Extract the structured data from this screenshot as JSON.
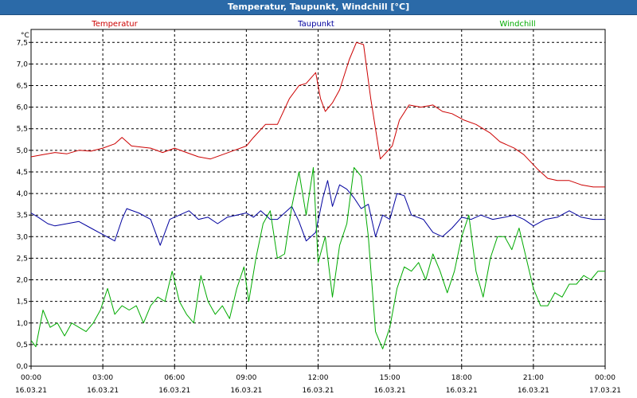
{
  "window": {
    "title": "Temperatur, Taupunkt, Windchill [°C]"
  },
  "chart_data": {
    "type": "line",
    "title": "Temperatur, Taupunkt, Windchill [°C]",
    "unit_label": "°C",
    "ylim": [
      0.0,
      7.8
    ],
    "y_ticks": [
      "0,0",
      "0,5",
      "1,0",
      "1,5",
      "2,0",
      "2,5",
      "3,0",
      "3,5",
      "4,0",
      "4,5",
      "5,0",
      "5,5",
      "6,0",
      "6,5",
      "7,0",
      "7,5"
    ],
    "xlim_hours": [
      0,
      24
    ],
    "x_ticks": [
      {
        "time": "00:00",
        "date": "16.03.21"
      },
      {
        "time": "03:00",
        "date": "16.03.21"
      },
      {
        "time": "06:00",
        "date": "16.03.21"
      },
      {
        "time": "09:00",
        "date": "16.03.21"
      },
      {
        "time": "12:00",
        "date": "16.03.21"
      },
      {
        "time": "15:00",
        "date": "16.03.21"
      },
      {
        "time": "18:00",
        "date": "16.03.21"
      },
      {
        "time": "21:00",
        "date": "16.03.21"
      },
      {
        "time": "00:00",
        "date": "17.03.21"
      }
    ],
    "grid": true,
    "series": [
      {
        "name": "Temperatur",
        "color": "#cc0000",
        "points": [
          [
            0,
            4.85
          ],
          [
            0.5,
            4.9
          ],
          [
            1,
            4.95
          ],
          [
            1.5,
            4.92
          ],
          [
            2,
            5.0
          ],
          [
            2.5,
            4.98
          ],
          [
            3,
            5.05
          ],
          [
            3.5,
            5.15
          ],
          [
            3.8,
            5.3
          ],
          [
            4.2,
            5.1
          ],
          [
            5,
            5.05
          ],
          [
            5.5,
            4.95
          ],
          [
            6,
            5.05
          ],
          [
            6.5,
            4.95
          ],
          [
            7,
            4.85
          ],
          [
            7.5,
            4.8
          ],
          [
            8,
            4.9
          ],
          [
            8.5,
            5.0
          ],
          [
            9,
            5.1
          ],
          [
            9.3,
            5.3
          ],
          [
            9.8,
            5.6
          ],
          [
            10.3,
            5.6
          ],
          [
            10.8,
            6.2
          ],
          [
            11.2,
            6.5
          ],
          [
            11.5,
            6.55
          ],
          [
            11.9,
            6.8
          ],
          [
            12.1,
            6.2
          ],
          [
            12.3,
            5.9
          ],
          [
            12.6,
            6.1
          ],
          [
            12.9,
            6.4
          ],
          [
            13.3,
            7.1
          ],
          [
            13.6,
            7.5
          ],
          [
            13.9,
            7.45
          ],
          [
            14.2,
            6.2
          ],
          [
            14.6,
            4.8
          ],
          [
            15.1,
            5.1
          ],
          [
            15.4,
            5.7
          ],
          [
            15.8,
            6.05
          ],
          [
            16.3,
            6.0
          ],
          [
            16.8,
            6.05
          ],
          [
            17.2,
            5.9
          ],
          [
            17.6,
            5.85
          ],
          [
            18.1,
            5.7
          ],
          [
            18.6,
            5.6
          ],
          [
            19.2,
            5.4
          ],
          [
            19.6,
            5.2
          ],
          [
            20.2,
            5.05
          ],
          [
            20.6,
            4.9
          ],
          [
            21.2,
            4.55
          ],
          [
            21.6,
            4.35
          ],
          [
            22,
            4.3
          ],
          [
            22.5,
            4.3
          ],
          [
            23,
            4.2
          ],
          [
            23.5,
            4.15
          ],
          [
            24,
            4.15
          ]
        ]
      },
      {
        "name": "Taupunkt",
        "color": "#00009e",
        "points": [
          [
            0,
            3.55
          ],
          [
            0.3,
            3.45
          ],
          [
            0.7,
            3.3
          ],
          [
            1,
            3.25
          ],
          [
            1.5,
            3.3
          ],
          [
            2,
            3.35
          ],
          [
            2.5,
            3.2
          ],
          [
            3,
            3.05
          ],
          [
            3.5,
            2.9
          ],
          [
            3.8,
            3.4
          ],
          [
            4,
            3.65
          ],
          [
            4.5,
            3.55
          ],
          [
            5,
            3.4
          ],
          [
            5.4,
            2.8
          ],
          [
            5.8,
            3.4
          ],
          [
            6.2,
            3.5
          ],
          [
            6.6,
            3.6
          ],
          [
            7,
            3.4
          ],
          [
            7.4,
            3.45
          ],
          [
            7.8,
            3.3
          ],
          [
            8.2,
            3.45
          ],
          [
            8.6,
            3.5
          ],
          [
            9,
            3.55
          ],
          [
            9.3,
            3.45
          ],
          [
            9.6,
            3.6
          ],
          [
            10,
            3.4
          ],
          [
            10.3,
            3.4
          ],
          [
            10.6,
            3.55
          ],
          [
            10.9,
            3.7
          ],
          [
            11.2,
            3.35
          ],
          [
            11.5,
            2.9
          ],
          [
            11.9,
            3.1
          ],
          [
            12.2,
            3.9
          ],
          [
            12.4,
            4.3
          ],
          [
            12.6,
            3.7
          ],
          [
            12.9,
            4.2
          ],
          [
            13.2,
            4.1
          ],
          [
            13.5,
            3.9
          ],
          [
            13.8,
            3.65
          ],
          [
            14.1,
            3.75
          ],
          [
            14.4,
            3.0
          ],
          [
            14.7,
            3.5
          ],
          [
            15,
            3.4
          ],
          [
            15.3,
            4.0
          ],
          [
            15.6,
            3.95
          ],
          [
            15.9,
            3.5
          ],
          [
            16.4,
            3.4
          ],
          [
            16.8,
            3.1
          ],
          [
            17.2,
            3.0
          ],
          [
            17.6,
            3.2
          ],
          [
            18,
            3.45
          ],
          [
            18.4,
            3.4
          ],
          [
            18.8,
            3.5
          ],
          [
            19.3,
            3.4
          ],
          [
            19.8,
            3.45
          ],
          [
            20.2,
            3.5
          ],
          [
            20.6,
            3.4
          ],
          [
            21,
            3.25
          ],
          [
            21.5,
            3.4
          ],
          [
            22,
            3.45
          ],
          [
            22.5,
            3.6
          ],
          [
            23,
            3.45
          ],
          [
            23.5,
            3.4
          ],
          [
            24,
            3.4
          ]
        ]
      },
      {
        "name": "Windchill",
        "color": "#00aa00",
        "points": [
          [
            0,
            0.6
          ],
          [
            0.2,
            0.45
          ],
          [
            0.5,
            1.3
          ],
          [
            0.8,
            0.9
          ],
          [
            1.1,
            1.0
          ],
          [
            1.4,
            0.7
          ],
          [
            1.7,
            1.0
          ],
          [
            2,
            0.9
          ],
          [
            2.3,
            0.8
          ],
          [
            2.6,
            1.0
          ],
          [
            2.9,
            1.3
          ],
          [
            3.2,
            1.8
          ],
          [
            3.5,
            1.2
          ],
          [
            3.8,
            1.4
          ],
          [
            4.1,
            1.3
          ],
          [
            4.4,
            1.4
          ],
          [
            4.7,
            1.0
          ],
          [
            5,
            1.4
          ],
          [
            5.3,
            1.6
          ],
          [
            5.6,
            1.5
          ],
          [
            5.9,
            2.2
          ],
          [
            6.2,
            1.5
          ],
          [
            6.5,
            1.2
          ],
          [
            6.8,
            1.0
          ],
          [
            7.1,
            2.1
          ],
          [
            7.4,
            1.5
          ],
          [
            7.7,
            1.2
          ],
          [
            8,
            1.4
          ],
          [
            8.3,
            1.1
          ],
          [
            8.6,
            1.8
          ],
          [
            8.9,
            2.3
          ],
          [
            9.1,
            1.5
          ],
          [
            9.4,
            2.5
          ],
          [
            9.7,
            3.3
          ],
          [
            10,
            3.6
          ],
          [
            10.3,
            2.5
          ],
          [
            10.6,
            2.6
          ],
          [
            10.9,
            3.7
          ],
          [
            11.2,
            4.5
          ],
          [
            11.5,
            3.5
          ],
          [
            11.8,
            4.6
          ],
          [
            12,
            2.4
          ],
          [
            12.3,
            3.0
          ],
          [
            12.6,
            1.6
          ],
          [
            12.9,
            2.8
          ],
          [
            13.2,
            3.3
          ],
          [
            13.5,
            4.6
          ],
          [
            13.8,
            4.4
          ],
          [
            14.1,
            3.0
          ],
          [
            14.4,
            0.8
          ],
          [
            14.7,
            0.4
          ],
          [
            15,
            0.9
          ],
          [
            15.3,
            1.8
          ],
          [
            15.6,
            2.3
          ],
          [
            15.9,
            2.2
          ],
          [
            16.2,
            2.4
          ],
          [
            16.5,
            2.0
          ],
          [
            16.8,
            2.6
          ],
          [
            17.1,
            2.2
          ],
          [
            17.4,
            1.7
          ],
          [
            17.7,
            2.2
          ],
          [
            18,
            3.0
          ],
          [
            18.3,
            3.5
          ],
          [
            18.6,
            2.2
          ],
          [
            18.9,
            1.6
          ],
          [
            19.2,
            2.5
          ],
          [
            19.5,
            3.0
          ],
          [
            19.8,
            3.0
          ],
          [
            20.1,
            2.7
          ],
          [
            20.4,
            3.2
          ],
          [
            20.7,
            2.5
          ],
          [
            21,
            1.8
          ],
          [
            21.3,
            1.4
          ],
          [
            21.6,
            1.4
          ],
          [
            21.9,
            1.7
          ],
          [
            22.2,
            1.6
          ],
          [
            22.5,
            1.9
          ],
          [
            22.8,
            1.9
          ],
          [
            23.1,
            2.1
          ],
          [
            23.4,
            2.0
          ],
          [
            23.7,
            2.2
          ],
          [
            24,
            2.2
          ]
        ]
      }
    ]
  }
}
